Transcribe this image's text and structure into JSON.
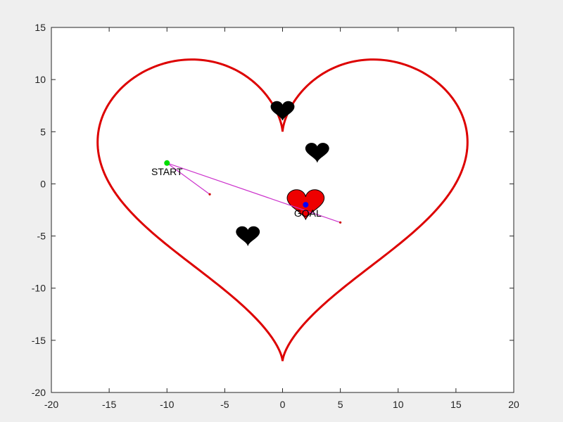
{
  "chart_data": {
    "type": "scatter",
    "title": "",
    "xlabel": "",
    "ylabel": "",
    "xlim": [
      -20,
      20
    ],
    "ylim": [
      -20,
      15
    ],
    "x_ticks": [
      -20,
      -15,
      -10,
      -5,
      0,
      5,
      10,
      15,
      20
    ],
    "y_ticks": [
      -20,
      -15,
      -10,
      -5,
      0,
      5,
      10,
      15
    ],
    "grid": false,
    "boundary": {
      "shape": "heart",
      "color": "#dd0000",
      "x_range": [
        -16,
        16
      ],
      "y_range": [
        -17,
        12
      ],
      "dip_y": 5
    },
    "obstacles": [
      {
        "x": 0,
        "y": 7,
        "fill": "#000000",
        "size": 2
      },
      {
        "x": 3,
        "y": 3,
        "fill": "#000000",
        "size": 2
      },
      {
        "x": -3,
        "y": -5,
        "fill": "#000000",
        "size": 2
      },
      {
        "x": 2,
        "y": -2,
        "fill": "#ee0000",
        "size": 3.2
      }
    ],
    "start": {
      "x": -10,
      "y": 2,
      "color": "#00dd00",
      "label": "START"
    },
    "goal": {
      "x": 2,
      "y": -2,
      "color": "#0000ff",
      "label": "GOAL"
    },
    "tree_color": "#cc33cc",
    "tree_edges": [
      {
        "from": [
          -10,
          2
        ],
        "to": [
          5,
          -3.7
        ]
      },
      {
        "from": [
          -10,
          2
        ],
        "to": [
          -6.3,
          -1
        ]
      }
    ]
  }
}
